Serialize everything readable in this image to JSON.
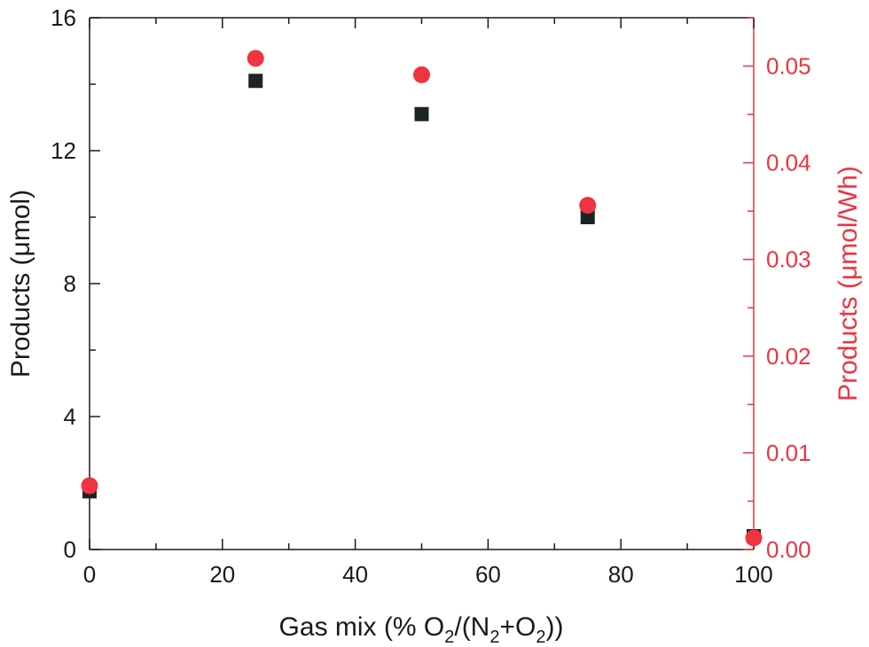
{
  "chart_data": {
    "type": "scatter",
    "xlabel": {
      "pre": "Gas mix (% O",
      "s1": "2",
      "mid1": "/(N",
      "s2": "2",
      "mid2": "+O",
      "s3": "2",
      "post": "))"
    },
    "ylabel": "Products (μmol)",
    "y2label": "Products (μmol/Wh)",
    "xlim": [
      0,
      100
    ],
    "ylim": [
      0,
      16
    ],
    "y2lim": [
      0,
      0.055
    ],
    "x_ticks": [
      "0",
      "20",
      "40",
      "60",
      "80",
      "100"
    ],
    "y_ticks": [
      "0",
      "4",
      "8",
      "12",
      "16"
    ],
    "y2_ticks": [
      "0.00",
      "0.01",
      "0.02",
      "0.03",
      "0.04",
      "0.05"
    ],
    "legend": "none",
    "grid": false,
    "colors": {
      "left_axis": "#1a1a1a",
      "right_axis": "#ef3340",
      "squares": "#1c2523",
      "circles": "#ef3340"
    },
    "series": [
      {
        "axis": "left",
        "marker": "square",
        "x": [
          0,
          25,
          50,
          75,
          100
        ],
        "y": [
          1.75,
          14.1,
          13.1,
          10.0,
          0.4
        ]
      },
      {
        "axis": "right",
        "marker": "circle",
        "x": [
          0,
          25,
          50,
          75,
          100
        ],
        "y": [
          0.0066,
          0.0508,
          0.0491,
          0.0356,
          0.0012
        ]
      }
    ]
  }
}
